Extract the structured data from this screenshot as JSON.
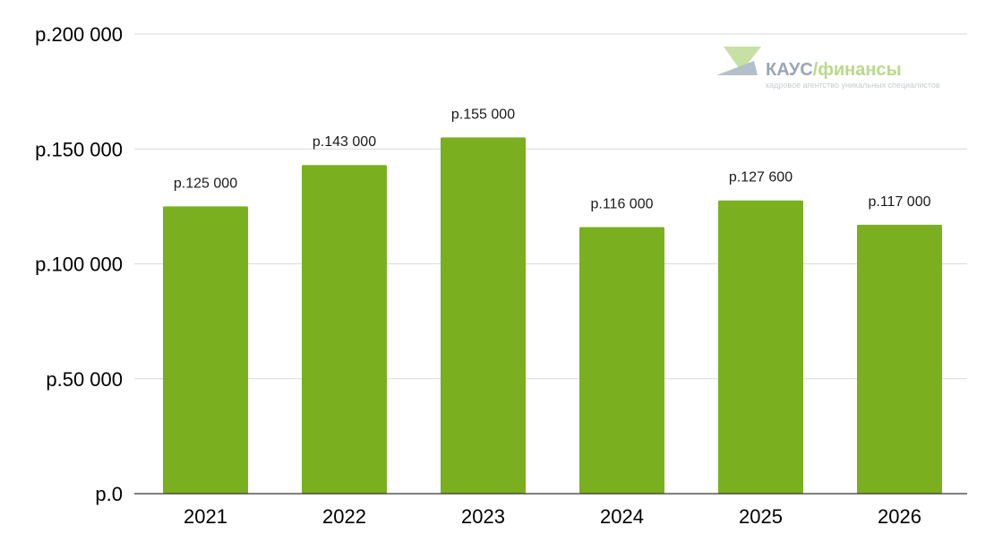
{
  "chart_data": {
    "type": "bar",
    "categories": [
      "2021",
      "2022",
      "2023",
      "2024",
      "2025",
      "2026"
    ],
    "values": [
      125000,
      143000,
      155000,
      116000,
      127600,
      117000
    ],
    "data_labels": [
      "р.125 000",
      "р.143 000",
      "р.155 000",
      "р.116 000",
      "р.127 600",
      "р.117 000"
    ],
    "title": "",
    "xlabel": "",
    "ylabel": "",
    "ylim": [
      0,
      200000
    ],
    "yticks": [
      0,
      50000,
      100000,
      150000,
      200000
    ],
    "ytick_labels": [
      "р.0",
      "р.50 000",
      "р.100 000",
      "р.150 000",
      "р.200 000"
    ],
    "grid": true,
    "legend": "none",
    "colors": {
      "bar": "#7aaf1f",
      "grid": "#d9d9d9",
      "axis": "#333333"
    }
  },
  "watermark": {
    "brand": "КАУС",
    "separator": "/",
    "suffix": "финансы",
    "tagline": "кадровое агентство уникальных специалистов",
    "colors": {
      "brand": "#9aa6b2",
      "suffix": "#b9d98a",
      "logo_green": "#c7e0a3",
      "logo_gray": "#b4bfca"
    }
  }
}
